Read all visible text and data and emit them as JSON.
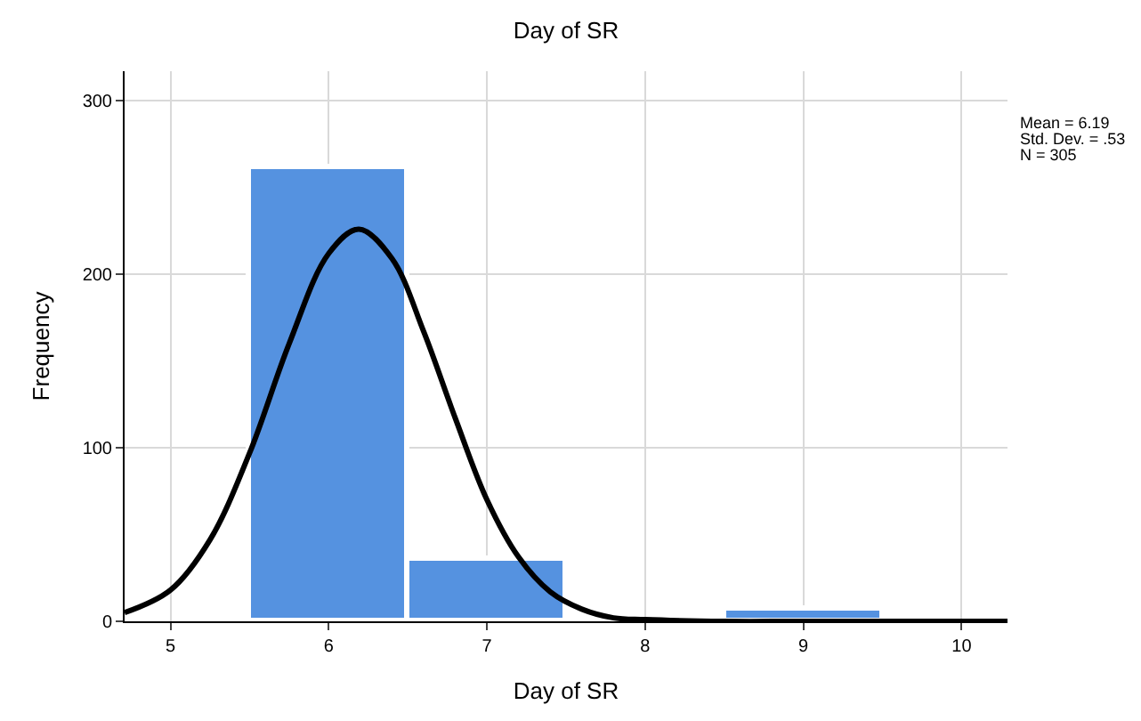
{
  "chart_data": {
    "type": "histogram",
    "title": "Day of SR",
    "xlabel": "Day of SR",
    "ylabel": "Frequency",
    "bins": [
      5.5,
      6.5,
      7.5,
      8.5,
      9.5
    ],
    "values": [
      262,
      36,
      0,
      7
    ],
    "color": "#5592e0",
    "series": [
      {
        "type": "line",
        "color": "#000000",
        "x": [
          4.71,
          5.0,
          5.25,
          5.5,
          5.75,
          6.0,
          6.19,
          6.4,
          6.6,
          6.8,
          7.0,
          7.2,
          7.4,
          7.6,
          7.8,
          8.0,
          8.5,
          9.0,
          10.29
        ],
        "values": [
          5,
          18,
          47,
          97,
          160,
          212,
          226,
          209,
          167,
          117,
          70,
          37,
          17,
          7,
          2,
          1,
          0,
          0,
          0
        ]
      }
    ],
    "xlim": [
      4.71,
      10.29
    ],
    "xticks": [
      5,
      6,
      7,
      8,
      9,
      10
    ],
    "ylim": [
      0,
      317
    ],
    "yticks": [
      0,
      100,
      200,
      300
    ],
    "grid": true,
    "annotations": [
      "Mean = 6.19",
      "Std. Dev. = .53",
      "N = 305"
    ]
  }
}
